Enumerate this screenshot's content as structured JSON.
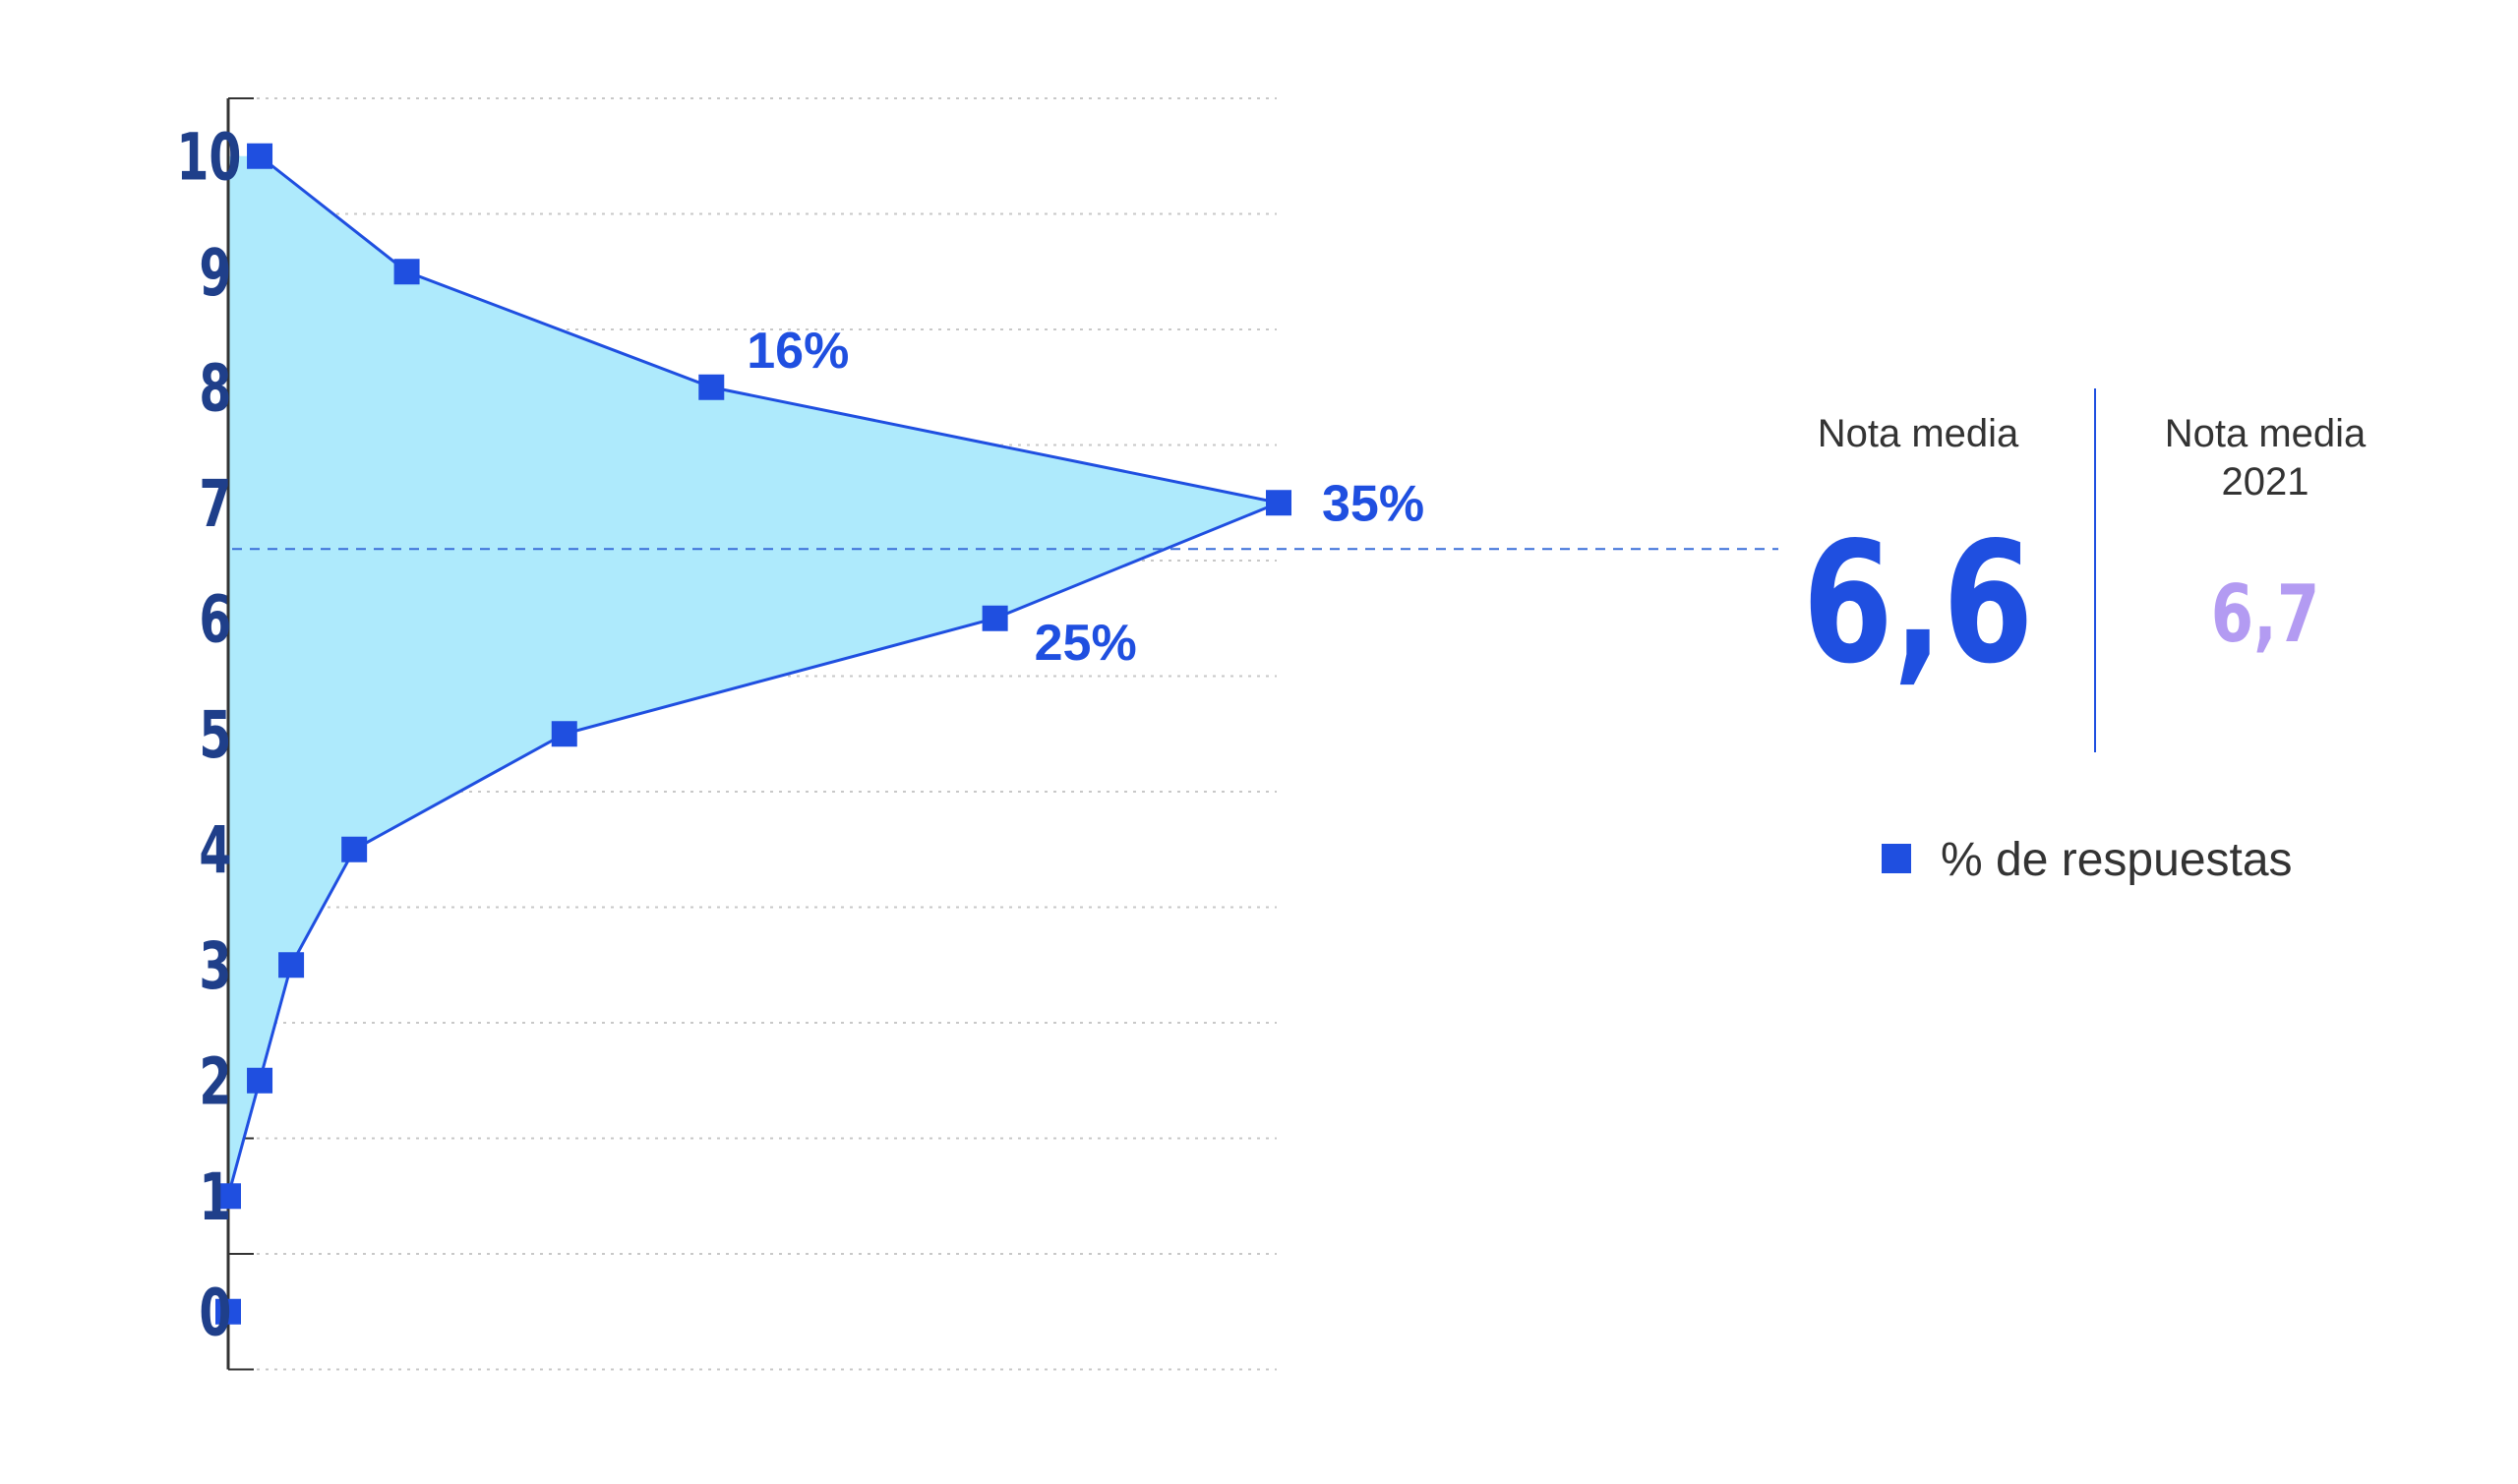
{
  "chart_data": {
    "type": "area",
    "orientation": "horizontal",
    "y_categories": [
      "0",
      "1",
      "2",
      "3",
      "4",
      "5",
      "6",
      "7",
      "8",
      "9",
      "10"
    ],
    "series": [
      {
        "name": "% de respuestas",
        "values": [
          0,
          0,
          3,
          6,
          12,
          32,
          73,
          100,
          46,
          17,
          3
        ]
      }
    ],
    "x_unit": "% relative to max (35%)",
    "x_range": [
      0,
      100
    ],
    "data_labels": [
      {
        "category": "7",
        "text": "35%"
      },
      {
        "category": "6",
        "text": "25%"
      },
      {
        "category": "8",
        "text": "16%"
      }
    ],
    "mean_line_category_value": 6.6,
    "grid": true,
    "legend_placement": "right",
    "colors": {
      "area_fill": "#aeeafc",
      "line": "#1f4fe0",
      "marker": "#1f4fe0",
      "tick_text": "#1f3f8a",
      "mean_current": "#1f4fe0",
      "mean_previous": "#b39bf2",
      "gridline": "#c8c8c8",
      "divider": "#1f4fe0"
    }
  },
  "summary": {
    "current_caption": "Nota media",
    "current_value": "6,6",
    "previous_caption_line1": "Nota media",
    "previous_caption_line2": "2021",
    "previous_value": "6,7"
  },
  "legend": {
    "label": "% de respuestas",
    "marker_color": "#1f4fe0"
  }
}
